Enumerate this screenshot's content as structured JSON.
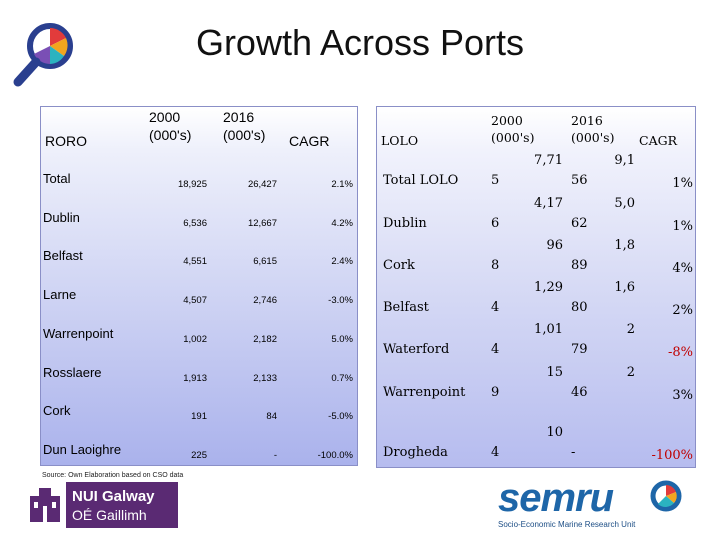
{
  "title": "Growth Across Ports",
  "roro": {
    "col_label": "RORO",
    "col_2000": [
      "2000",
      "(000's)"
    ],
    "col_2016": [
      "2016",
      "(000's)"
    ],
    "col_cagr": "CAGR",
    "rows": [
      {
        "port": "Total",
        "y2000": "18,925",
        "y2016": "26,427",
        "cagr": "2.1%"
      },
      {
        "port": "Dublin",
        "y2000": "6,536",
        "y2016": "12,667",
        "cagr": "4.2%"
      },
      {
        "port": "Belfast",
        "y2000": "4,551",
        "y2016": "6,615",
        "cagr": "2.4%"
      },
      {
        "port": "Larne",
        "y2000": "4,507",
        "y2016": "2,746",
        "cagr": "-3.0%"
      },
      {
        "port": "Warrenpoint",
        "y2000": "1,002",
        "y2016": "2,182",
        "cagr": "5.0%"
      },
      {
        "port": "Rosslaere",
        "y2000": "1,913",
        "y2016": "2,133",
        "cagr": "0.7%"
      },
      {
        "port": "Cork",
        "y2000": "191",
        "y2016": "84",
        "cagr": "-5.0%"
      },
      {
        "port": "Dun Laoighre",
        "y2000": "225",
        "y2016": "-",
        "cagr": "-100.0%"
      }
    ]
  },
  "lolo": {
    "col_label": "LOLO",
    "col_2000": [
      "2000",
      "(000's)"
    ],
    "col_2016": [
      "2016",
      "(000's)"
    ],
    "col_cagr": "CAGR",
    "rows": [
      {
        "port": "Total LOLO",
        "a_top": "7,71",
        "a_bot": "5",
        "b_top": "9,1",
        "b_bot": "56",
        "cagr": "1%"
      },
      {
        "port": "Dublin",
        "a_top": "4,17",
        "a_bot": "6",
        "b_top": "5,0",
        "b_bot": "62",
        "cagr": "1%"
      },
      {
        "port": "Cork",
        "a_top": "96",
        "a_bot": "8",
        "b_top": "1,8",
        "b_bot": "89",
        "cagr": "4%"
      },
      {
        "port": "Belfast",
        "a_top": "1,29",
        "a_bot": "4",
        "b_top": "1,6",
        "b_bot": "80",
        "cagr": "2%"
      },
      {
        "port": "Waterford",
        "a_top": "1,01",
        "a_bot": "4",
        "b_top": "2",
        "b_bot": "79",
        "cagr": "-8%"
      },
      {
        "port": "Warrenpoint",
        "a_top": "15",
        "a_bot": "9",
        "b_top": "2",
        "b_bot": "46",
        "cagr": "3%"
      },
      {
        "port": "Drogheda",
        "a_top": "10",
        "a_bot": "4",
        "b_top": "",
        "b_bot": "-",
        "cagr": "-100%"
      }
    ]
  },
  "source_note": "Source: Own Elaboration based on CSO data",
  "logos": {
    "nui_line1": "NUI Galway",
    "nui_line2": "OÉ Gaillimh",
    "semru_word": "semru",
    "semru_sub": "Socio-Economic Marine Research Unit"
  },
  "colors": {
    "table_border": "#8a8fc7",
    "cagr_negative": "#c00000",
    "nui_purple": "#5a2a73",
    "semru_blue": "#1e66a8"
  }
}
